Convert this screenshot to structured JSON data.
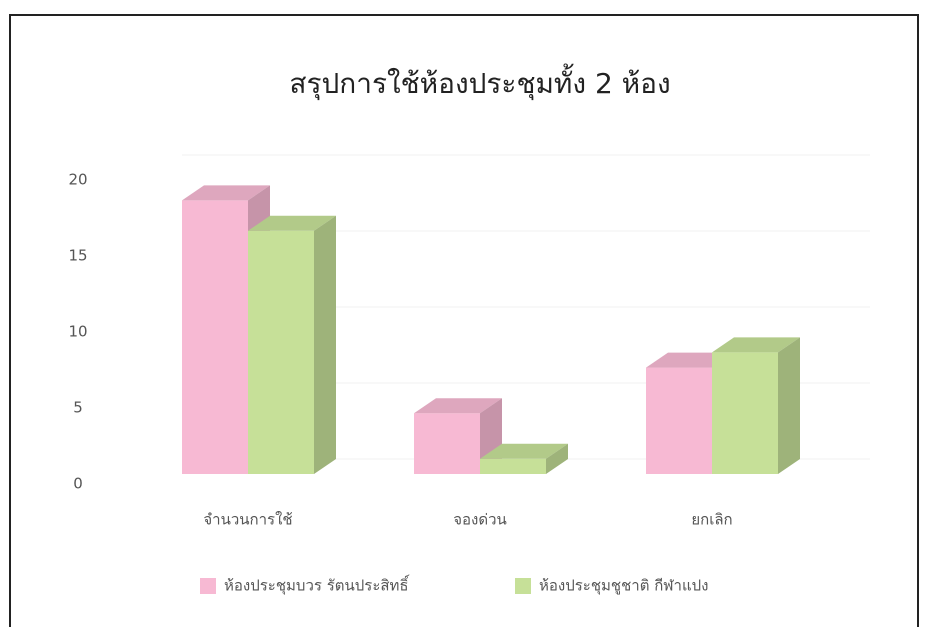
{
  "chart_data": {
    "type": "bar3d",
    "title": "สรุปการใช้ห้องประชุมทั้ง 2 ห้อง",
    "categories": [
      "จำนวนการใช้",
      "จองด่วน",
      "ยกเลิก"
    ],
    "series": [
      {
        "name": "ห้องประชุมบวร รัตนประสิทธิ์",
        "color": "#f7b9d3",
        "values": [
          18,
          4,
          7
        ]
      },
      {
        "name": "ห้องประชุมชูชาติ กีฬาแปง",
        "color": "#c6e098",
        "values": [
          16,
          1,
          8
        ]
      }
    ],
    "ylim": [
      0,
      20
    ],
    "yticks": [
      0,
      5,
      10,
      15,
      20
    ],
    "grid": true,
    "legend": "bottom"
  }
}
